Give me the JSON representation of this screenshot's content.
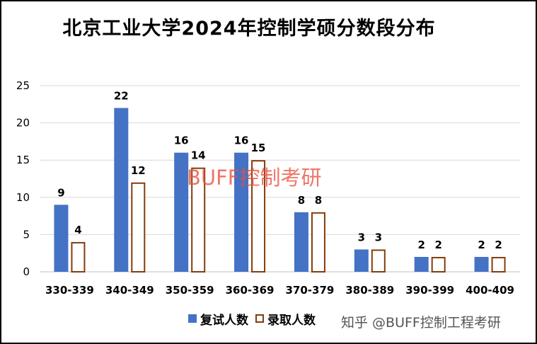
{
  "chart_data": {
    "type": "bar",
    "title": "北京工业大学2024年控制学硕分数段分布",
    "categories": [
      "330-339",
      "340-349",
      "350-359",
      "360-369",
      "370-379",
      "380-389",
      "390-399",
      "400-409"
    ],
    "series": [
      {
        "name": "复试人数",
        "values": [
          9,
          22,
          16,
          16,
          8,
          3,
          2,
          2
        ],
        "color": "#4472C4",
        "style": "filled"
      },
      {
        "name": "录取人数",
        "values": [
          4,
          12,
          14,
          15,
          8,
          3,
          2,
          2
        ],
        "color": "#843C0C",
        "style": "outline"
      }
    ],
    "yticks": [
      "0",
      "5",
      "10",
      "15",
      "20",
      "25"
    ],
    "ylim": [
      0,
      25
    ],
    "grid": true,
    "legend_position": "bottom",
    "data_labels": true
  },
  "watermarks": {
    "center": "BUFF控制考研",
    "corner": "知乎 @BUFF控制工程考研"
  }
}
